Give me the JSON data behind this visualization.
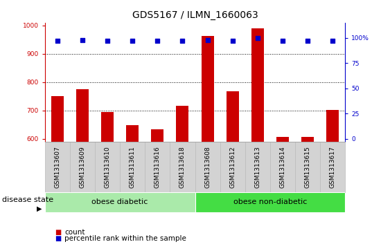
{
  "title": "GDS5167 / ILMN_1660063",
  "samples": [
    "GSM1313607",
    "GSM1313609",
    "GSM1313610",
    "GSM1313611",
    "GSM1313616",
    "GSM1313618",
    "GSM1313608",
    "GSM1313612",
    "GSM1313613",
    "GSM1313614",
    "GSM1313615",
    "GSM1313617"
  ],
  "counts": [
    750,
    775,
    695,
    648,
    635,
    718,
    963,
    767,
    990,
    608,
    607,
    703
  ],
  "percentiles": [
    97,
    98,
    97,
    97,
    97,
    97,
    98,
    97,
    100,
    97,
    97,
    97
  ],
  "groups": [
    {
      "label": "obese diabetic",
      "start": 0,
      "end": 6,
      "color": "#aaeaaa"
    },
    {
      "label": "obese non-diabetic",
      "start": 6,
      "end": 12,
      "color": "#44dd44"
    }
  ],
  "ylim_left": [
    590,
    1010
  ],
  "ylim_right": [
    -3,
    115
  ],
  "yticks_left": [
    600,
    700,
    800,
    900,
    1000
  ],
  "yticks_right": [
    0,
    25,
    50,
    75,
    100
  ],
  "bar_color": "#cc0000",
  "dot_color": "#0000cc",
  "bar_width": 0.5,
  "dot_size": 25,
  "grid_yticks": [
    700,
    800,
    900
  ],
  "left_tick_color": "#cc0000",
  "right_tick_color": "#0000cc",
  "title_fontsize": 10,
  "tick_label_fontsize": 6.5,
  "legend_fontsize": 7.5,
  "group_label_fontsize": 8,
  "disease_state_fontsize": 8
}
